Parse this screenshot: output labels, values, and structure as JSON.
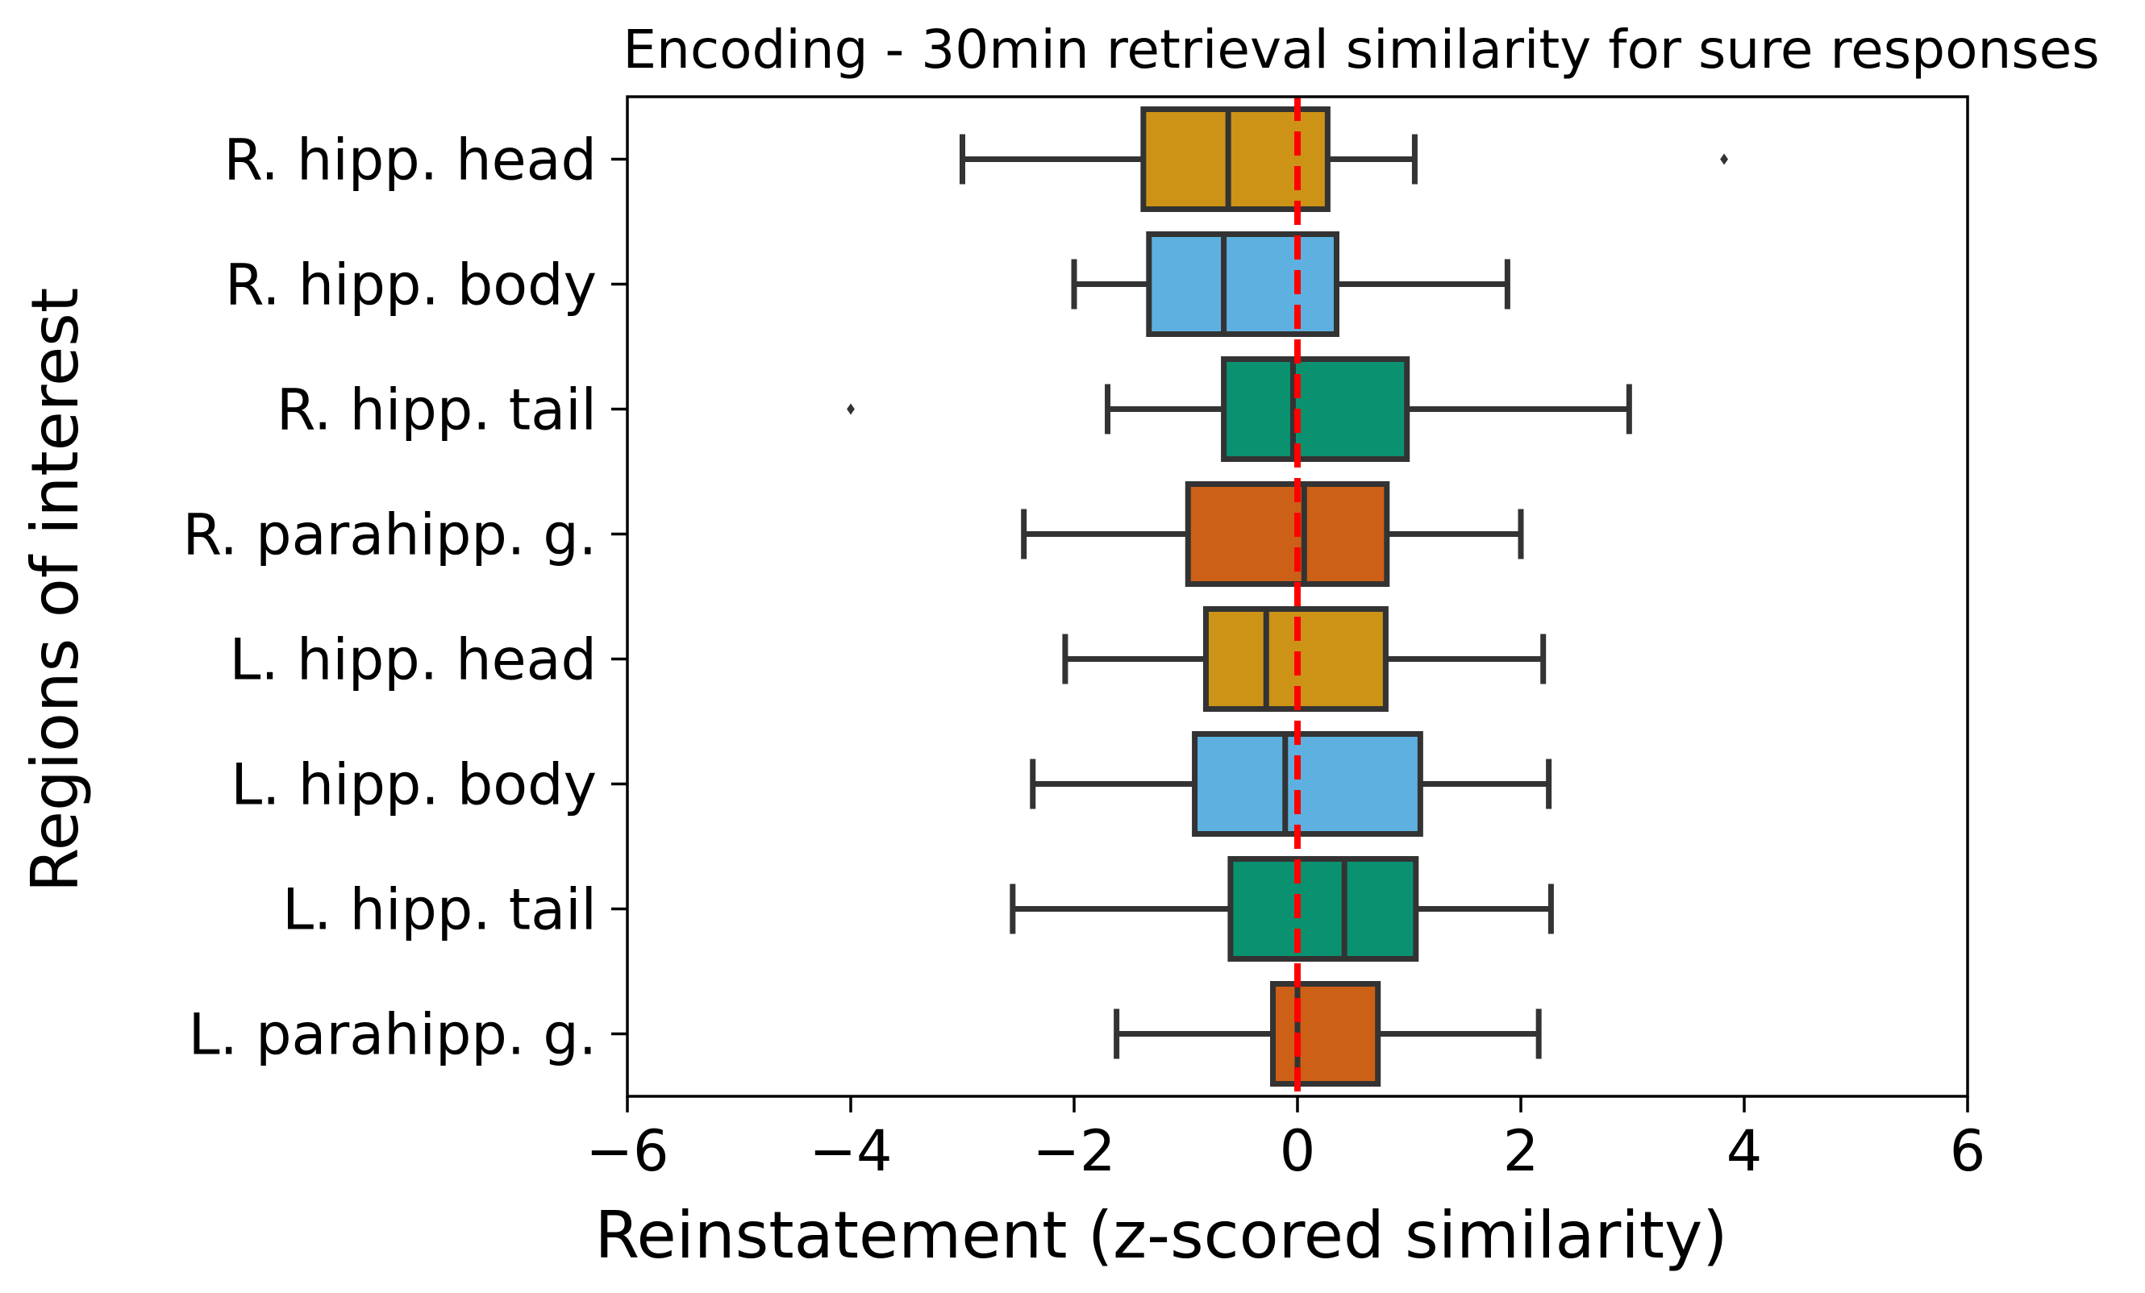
{
  "chart_data": {
    "type": "box",
    "orientation": "horizontal",
    "title": "Encoding - 30min retrieval similarity for sure responses",
    "xlabel": "Reinstatement (z-scored similarity)",
    "ylabel": "Regions of interest",
    "xlim": [
      -6,
      6
    ],
    "xticks": [
      -6,
      -4,
      -2,
      0,
      2,
      4,
      6
    ],
    "xtick_labels": [
      "−6",
      "−4",
      "−2",
      "0",
      "2",
      "4",
      "6"
    ],
    "reference_line": {
      "x": 0,
      "style": "dashed",
      "color": "#ff0000"
    },
    "grid": false,
    "categories": [
      "R. hipp. head",
      "R. hipp. body",
      "R. hipp. tail",
      "R. parahipp. g.",
      "L. hipp. head",
      "L. hipp. body",
      "L. hipp. tail",
      "L. parahipp. g."
    ],
    "colors": [
      "#cc9316",
      "#5eb0e0",
      "#0a9170",
      "#cc6016",
      "#cc9316",
      "#5eb0e0",
      "#0a9170",
      "#cc6016"
    ],
    "boxes": [
      {
        "whisker_low": -3.0,
        "q1": -1.38,
        "median": -0.62,
        "q3": 0.27,
        "whisker_high": 1.05,
        "outliers": [
          3.82
        ]
      },
      {
        "whisker_low": -2.0,
        "q1": -1.33,
        "median": -0.66,
        "q3": 0.35,
        "whisker_high": 1.88,
        "outliers": []
      },
      {
        "whisker_low": -1.7,
        "q1": -0.66,
        "median": -0.04,
        "q3": 0.98,
        "whisker_high": 2.97,
        "outliers": [
          -4.0
        ]
      },
      {
        "whisker_low": -2.45,
        "q1": -0.98,
        "median": 0.06,
        "q3": 0.8,
        "whisker_high": 2.0,
        "outliers": []
      },
      {
        "whisker_low": -2.08,
        "q1": -0.82,
        "median": -0.28,
        "q3": 0.79,
        "whisker_high": 2.2,
        "outliers": []
      },
      {
        "whisker_low": -2.37,
        "q1": -0.92,
        "median": -0.11,
        "q3": 1.1,
        "whisker_high": 2.25,
        "outliers": []
      },
      {
        "whisker_low": -2.55,
        "q1": -0.6,
        "median": 0.42,
        "q3": 1.06,
        "whisker_high": 2.27,
        "outliers": []
      },
      {
        "whisker_low": -1.62,
        "q1": -0.22,
        "median": 0.0,
        "q3": 0.72,
        "whisker_high": 2.16,
        "outliers": []
      }
    ]
  }
}
